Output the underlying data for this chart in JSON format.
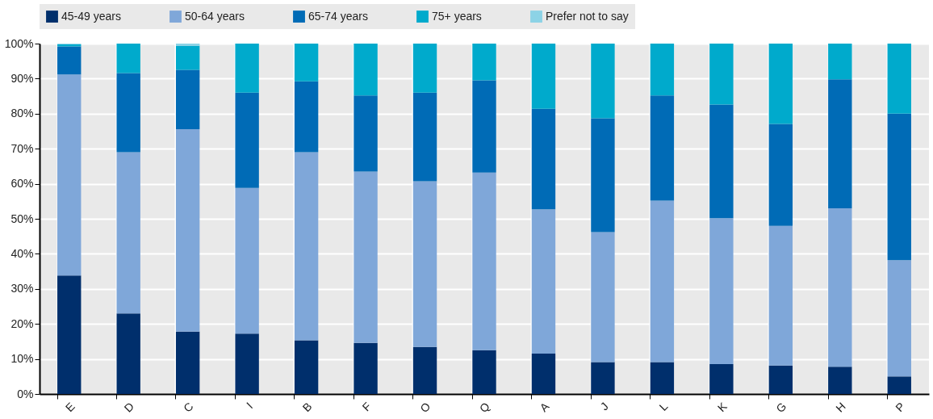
{
  "chart_data": {
    "type": "bar",
    "stacked": true,
    "categories": [
      "E",
      "D",
      "C",
      "I",
      "B",
      "F",
      "O",
      "Q",
      "A",
      "J",
      "L",
      "K",
      "G",
      "H",
      "P"
    ],
    "series": [
      {
        "name": "45-49 years",
        "color": "#002f6c",
        "values": [
          33.8,
          23,
          17.8,
          17.2,
          15.3,
          14.6,
          13.4,
          12.5,
          11.5,
          9.1,
          9.1,
          8.5,
          8.1,
          7.8,
          5
        ]
      },
      {
        "name": "50-64 years",
        "color": "#7fa7d9",
        "values": [
          57.4,
          46,
          57.8,
          41.6,
          53.7,
          48.9,
          47.3,
          50.7,
          41.2,
          37.1,
          46.1,
          41.7,
          39.9,
          45.2,
          33.2
        ]
      },
      {
        "name": "65-74 years",
        "color": "#006bb6",
        "values": [
          8,
          22.6,
          16.9,
          27.2,
          20.2,
          21.7,
          25.3,
          26.3,
          28.7,
          32.5,
          30,
          32.4,
          29.1,
          36.8,
          41.8
        ]
      },
      {
        "name": "75+ years",
        "color": "#00aacc",
        "values": [
          0.6,
          8.4,
          6.9,
          14,
          10.8,
          14.8,
          14,
          10.5,
          18.6,
          21.3,
          14.8,
          17.4,
          22.9,
          10.2,
          20
        ]
      },
      {
        "name": "Prefer not to say",
        "color": "#8cd3e6",
        "values": [
          0.2,
          0,
          0.6,
          0,
          0,
          0,
          0,
          0,
          0,
          0,
          0,
          0,
          0,
          0,
          0
        ]
      }
    ],
    "ylim": [
      0,
      100
    ],
    "yticks": [
      {
        "value": 0,
        "label": "0%"
      },
      {
        "value": 10,
        "label": "10%"
      },
      {
        "value": 20,
        "label": "20%"
      },
      {
        "value": 30,
        "label": "30%"
      },
      {
        "value": 40,
        "label": "40%"
      },
      {
        "value": 50,
        "label": "50%"
      },
      {
        "value": 60,
        "label": "60%"
      },
      {
        "value": 70,
        "label": "70%"
      },
      {
        "value": 80,
        "label": "80%"
      },
      {
        "value": 90,
        "label": "90%"
      },
      {
        "value": 100,
        "label": "100%"
      }
    ],
    "grid": true,
    "legend": "top"
  }
}
